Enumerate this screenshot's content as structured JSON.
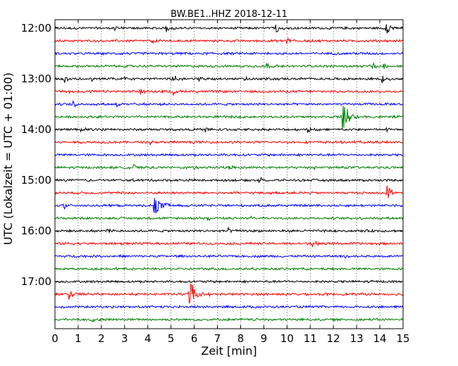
{
  "chart_data": {
    "type": "line",
    "title": "BW.BE1..HHZ 2018-12-11",
    "xlabel": "Zeit  [min]",
    "ylabel": "UTC (Lokalzeit = UTC + 01:00)",
    "xlim": [
      0,
      15
    ],
    "x_ticks": [
      "0",
      "1",
      "2",
      "3",
      "4",
      "5",
      "6",
      "7",
      "8",
      "9",
      "10",
      "11",
      "12",
      "13",
      "14",
      "15"
    ],
    "y_ticks": [
      "12:00",
      "13:00",
      "14:00",
      "15:00",
      "16:00",
      "17:00"
    ],
    "grid": true,
    "line_colors": [
      "#000000",
      "#ff0000",
      "#0000ff",
      "#008000"
    ],
    "series": [
      {
        "start": "12:00",
        "events": [
          {
            "t": 2.6,
            "a": 0.5
          },
          {
            "t": 4.8,
            "a": 0.5
          },
          {
            "t": 9.5,
            "a": 0.9
          },
          {
            "t": 14.3,
            "a": 0.9
          }
        ]
      },
      {
        "start": "12:15",
        "events": [
          {
            "t": 4.2,
            "a": 0.4
          },
          {
            "t": 10.0,
            "a": 0.5
          }
        ]
      },
      {
        "start": "12:30",
        "events": [
          {
            "t": 9.1,
            "a": 0.25
          }
        ]
      },
      {
        "start": "12:45",
        "events": [
          {
            "t": 9.1,
            "a": 0.5
          },
          {
            "t": 13.7,
            "a": 0.5
          },
          {
            "t": 14.2,
            "a": 0.45
          }
        ]
      },
      {
        "start": "13:00",
        "events": [
          {
            "t": 0.4,
            "a": 0.6
          },
          {
            "t": 1.6,
            "a": 0.5
          },
          {
            "t": 3.0,
            "a": 0.5
          },
          {
            "t": 5.1,
            "a": 0.6
          },
          {
            "t": 6.2,
            "a": 0.5
          },
          {
            "t": 8.2,
            "a": 0.45
          },
          {
            "t": 14.1,
            "a": 0.6
          }
        ]
      },
      {
        "start": "13:15",
        "events": [
          {
            "t": 0.5,
            "a": 0.35
          },
          {
            "t": 3.7,
            "a": 0.6
          },
          {
            "t": 5.1,
            "a": 0.4
          }
        ]
      },
      {
        "start": "13:30",
        "events": [
          {
            "t": 0.8,
            "a": 0.4
          },
          {
            "t": 2.7,
            "a": 0.35
          }
        ]
      },
      {
        "start": "13:45",
        "events": [
          {
            "t": 12.4,
            "a": 1.9
          }
        ]
      },
      {
        "start": "14:00",
        "events": [
          {
            "t": 1.1,
            "a": 0.45
          },
          {
            "t": 6.5,
            "a": 0.45
          },
          {
            "t": 10.9,
            "a": 0.55
          },
          {
            "t": 14.3,
            "a": 0.35
          }
        ]
      },
      {
        "start": "14:15",
        "events": [
          {
            "t": 4.1,
            "a": 0.3
          },
          {
            "t": 12.9,
            "a": 0.3
          }
        ]
      },
      {
        "start": "14:30",
        "events": []
      },
      {
        "start": "14:45",
        "events": [
          {
            "t": 3.4,
            "a": 0.4
          },
          {
            "t": 6.0,
            "a": 0.4
          },
          {
            "t": 7.5,
            "a": 0.4
          },
          {
            "t": 11.2,
            "a": 0.3
          }
        ]
      },
      {
        "start": "15:00",
        "events": [
          {
            "t": 1.4,
            "a": 0.3
          },
          {
            "t": 8.8,
            "a": 0.5
          }
        ]
      },
      {
        "start": "15:15",
        "events": [
          {
            "t": 14.3,
            "a": 1.0
          }
        ]
      },
      {
        "start": "15:30",
        "events": [
          {
            "t": 0.4,
            "a": 0.45
          },
          {
            "t": 4.3,
            "a": 1.6
          }
        ]
      },
      {
        "start": "15:45",
        "events": [
          {
            "t": 6.6,
            "a": 0.3
          },
          {
            "t": 8.4,
            "a": 0.3
          }
        ]
      },
      {
        "start": "16:00",
        "events": [
          {
            "t": 2.3,
            "a": 0.3
          },
          {
            "t": 7.5,
            "a": 0.45
          },
          {
            "t": 11.6,
            "a": 0.3
          }
        ]
      },
      {
        "start": "16:15",
        "events": [
          {
            "t": 11.1,
            "a": 0.35
          }
        ]
      },
      {
        "start": "16:30",
        "events": [
          {
            "t": 12.5,
            "a": 0.35
          }
        ]
      },
      {
        "start": "16:45",
        "events": [
          {
            "t": 2.6,
            "a": 0.3
          },
          {
            "t": 10.2,
            "a": 0.25
          }
        ]
      },
      {
        "start": "17:00",
        "events": []
      },
      {
        "start": "17:15",
        "events": [
          {
            "t": 0.6,
            "a": 0.7
          },
          {
            "t": 5.8,
            "a": 1.8
          }
        ]
      },
      {
        "start": "17:30",
        "events": []
      },
      {
        "start": "17:45",
        "events": [
          {
            "t": 1.6,
            "a": 0.3
          }
        ]
      }
    ]
  }
}
